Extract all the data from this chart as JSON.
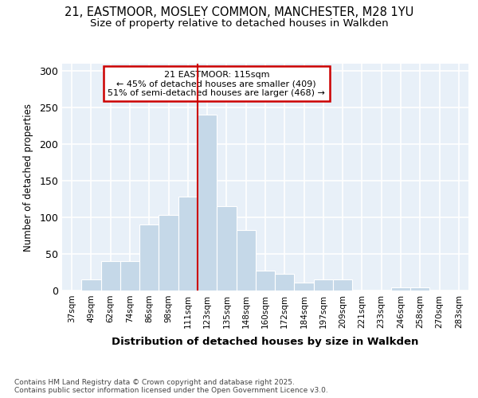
{
  "title_line1": "21, EASTMOOR, MOSLEY COMMON, MANCHESTER, M28 1YU",
  "title_line2": "Size of property relative to detached houses in Walkden",
  "xlabel": "Distribution of detached houses by size in Walkden",
  "ylabel": "Number of detached properties",
  "categories": [
    "37sqm",
    "49sqm",
    "62sqm",
    "74sqm",
    "86sqm",
    "98sqm",
    "111sqm",
    "123sqm",
    "135sqm",
    "148sqm",
    "160sqm",
    "172sqm",
    "184sqm",
    "197sqm",
    "209sqm",
    "221sqm",
    "233sqm",
    "246sqm",
    "258sqm",
    "270sqm",
    "283sqm"
  ],
  "values": [
    0,
    15,
    40,
    40,
    90,
    103,
    128,
    240,
    115,
    83,
    27,
    23,
    11,
    15,
    15,
    0,
    0,
    4,
    4,
    0,
    0
  ],
  "bar_color": "#c5d8e8",
  "bar_edge_color": "#c5d8e8",
  "vline_x_index": 7,
  "vline_color": "#cc0000",
  "annotation_title": "21 EASTMOOR: 115sqm",
  "annotation_line2": "← 45% of detached houses are smaller (409)",
  "annotation_line3": "51% of semi-detached houses are larger (468) →",
  "annotation_box_color": "#cc0000",
  "plot_bg_color": "#e8f0f8",
  "ylim": [
    0,
    310
  ],
  "yticks": [
    0,
    50,
    100,
    150,
    200,
    250,
    300
  ],
  "footnote": "Contains HM Land Registry data © Crown copyright and database right 2025.\nContains public sector information licensed under the Open Government Licence v3.0.",
  "grid_color": "#ffffff",
  "fig_bg": "#ffffff"
}
